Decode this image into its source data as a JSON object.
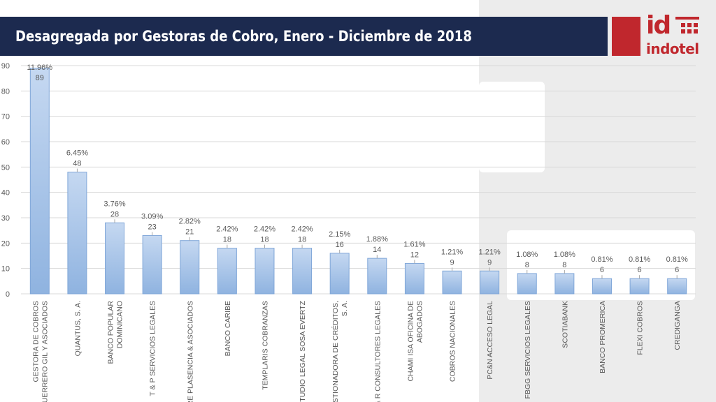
{
  "header": {
    "title": "Desagregada por Gestoras de Cobro, Enero - Diciembre de 2018"
  },
  "logo": {
    "mark": "id",
    "name": "indotel",
    "color": "#c0272d"
  },
  "colors": {
    "header_bg": "#1c2a4f",
    "bar_fill": "#a9c4e8",
    "bar_stroke": "#7fa6d8",
    "grid": "#d9d9d9",
    "text": "#595959"
  },
  "chart_data": {
    "type": "bar",
    "title": "",
    "xlabel": "",
    "ylabel": "",
    "ylim": [
      0,
      90
    ],
    "yticks": [
      0,
      10,
      20,
      30,
      40,
      50,
      60,
      70,
      80,
      90
    ],
    "grid": true,
    "categories": [
      [
        "GESTORA DE COBROS",
        "GUERRERO GIL Y ASOCIADOS"
      ],
      [
        "QUANTUS, S. A."
      ],
      [
        "BANCO POPULAR",
        "DOMINICANO"
      ],
      [
        "T & P SERVICIOS LEGALES"
      ],
      [
        "RE PLASENCIA & ASOCIADOS"
      ],
      [
        "BANCO CARIBE"
      ],
      [
        "TEMPLARIS COBRANZAS"
      ],
      [
        "STUDIO LEGAL SOSA EVERTZ"
      ],
      [
        "STIONADORA DE CRÉDITOS,",
        "S. A."
      ],
      [
        "& R CONSULTORES LEGALES"
      ],
      [
        "CHAMI ISA OFICINA DE",
        "ABOGADOS"
      ],
      [
        "COBROS NACIONALES"
      ],
      [
        "PC&N ACCESO LEGAL"
      ],
      [
        "FBGG SERVICIOS LEGALES"
      ],
      [
        "SCOTIABANK"
      ],
      [
        "BANCO PROMERICA"
      ],
      [
        "FLEXI COBROS"
      ],
      [
        "CREDIGANGA"
      ]
    ],
    "values": [
      89,
      48,
      28,
      23,
      21,
      18,
      18,
      18,
      16,
      14,
      12,
      9,
      9,
      8,
      8,
      6,
      6,
      6
    ],
    "percent_labels": [
      "11.96%",
      "6.45%",
      "3.76%",
      "3.09%",
      "2.82%",
      "2.42%",
      "2.42%",
      "2.42%",
      "2.15%",
      "1.88%",
      "1.61%",
      "1.21%",
      "1.21%",
      "1.08%",
      "1.08%",
      "0.81%",
      "0.81%",
      "0.81%"
    ]
  }
}
